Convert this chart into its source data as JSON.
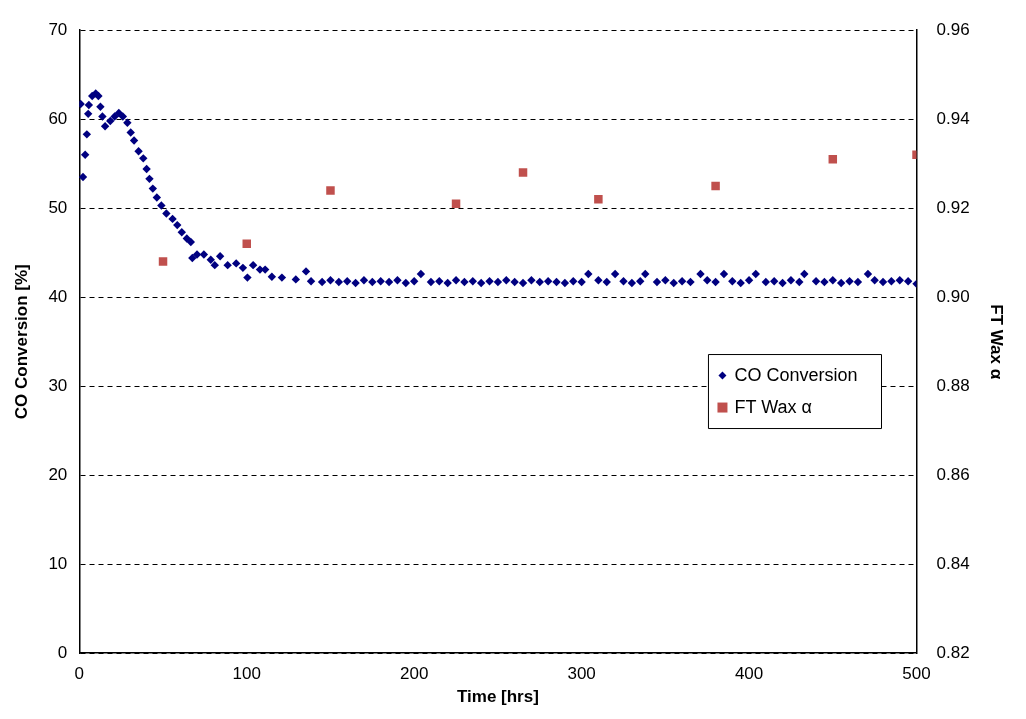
{
  "chart_data": {
    "type": "scatter",
    "xlabel": "Time [hrs]",
    "ylabel": "CO Conversion [%]",
    "y2label": "FT Wax α",
    "xlim": [
      0,
      500
    ],
    "xticks": [
      0,
      100,
      200,
      300,
      400,
      500
    ],
    "ylim": [
      0,
      70
    ],
    "yticks": [
      0,
      10,
      20,
      30,
      40,
      50,
      60,
      70
    ],
    "y2lim": [
      0.82,
      0.96
    ],
    "y2ticks": [
      {
        "value": 0.82,
        "label": "0.82"
      },
      {
        "value": 0.84,
        "label": "0.84"
      },
      {
        "value": 0.86,
        "label": "0.86"
      },
      {
        "value": 0.88,
        "label": "0.88"
      },
      {
        "value": 0.9,
        "label": "0.90"
      },
      {
        "value": 0.92,
        "label": "0.92"
      },
      {
        "value": 0.94,
        "label": "0.94"
      },
      {
        "value": 0.96,
        "label": "0.96"
      }
    ],
    "grid": "y",
    "legend": "right",
    "series": [
      {
        "name": "CO Conversion",
        "color": "#000080",
        "marker": "diamond",
        "x": [
          0.8,
          2.2,
          3.5,
          4.5,
          5.3,
          5.7,
          7.7,
          9.8,
          11.4,
          12.6,
          13.8,
          15.4,
          18.5,
          21.1,
          23.6,
          26,
          28.7,
          30.7,
          32.7,
          35.4,
          38.2,
          40.2,
          41.9,
          43.9,
          46.3,
          49,
          52,
          55.7,
          58.5,
          61.2,
          64.2,
          66.6,
          67.5,
          70.3,
          74.4,
          78.5,
          80.9,
          84.1,
          88.6,
          93.7,
          97.7,
          100.4,
          103.8,
          107.9,
          111,
          115,
          121,
          129.3,
          135.4,
          138.4,
          145,
          150,
          155,
          160,
          165,
          170,
          175,
          180,
          185,
          190,
          195,
          200,
          204,
          210,
          215,
          220,
          225,
          230,
          235,
          240,
          245,
          250,
          255,
          260,
          265,
          270,
          275,
          280,
          285,
          290,
          295,
          300,
          304,
          310,
          315,
          320,
          325,
          330,
          335,
          338,
          345,
          350,
          355,
          360,
          365,
          371,
          375,
          380,
          385,
          390,
          395,
          400,
          404,
          410,
          415,
          420,
          425,
          430,
          433,
          440,
          445,
          450,
          455,
          460,
          465,
          471,
          475,
          480,
          485,
          490,
          495,
          500
        ],
        "values": [
          61.7,
          53.5,
          56,
          58.3,
          60.6,
          61.6,
          62.6,
          62.9,
          62.6,
          61.4,
          60.3,
          59.2,
          59.8,
          60.3,
          60.7,
          60.3,
          59.6,
          58.5,
          57.6,
          56.4,
          55.6,
          54.4,
          53.3,
          52.2,
          51.2,
          50.3,
          49.4,
          48.8,
          48.1,
          47.3,
          46.6,
          46.2,
          44.4,
          44.8,
          44.8,
          44.2,
          43.6,
          44.6,
          43.6,
          43.8,
          43.3,
          42.2,
          43.6,
          43.1,
          43.1,
          42.3,
          42.2,
          42,
          42.9,
          41.8,
          41.7,
          41.9,
          41.7,
          41.8,
          41.6,
          41.9,
          41.7,
          41.8,
          41.7,
          41.9,
          41.6,
          41.8,
          42.6,
          41.7,
          41.8,
          41.6,
          41.9,
          41.7,
          41.8,
          41.6,
          41.8,
          41.7,
          41.9,
          41.7,
          41.6,
          41.9,
          41.7,
          41.8,
          41.7,
          41.6,
          41.8,
          41.7,
          42.6,
          41.9,
          41.7,
          42.6,
          41.8,
          41.6,
          41.8,
          42.6,
          41.7,
          41.9,
          41.6,
          41.8,
          41.7,
          42.6,
          41.9,
          41.7,
          42.6,
          41.8,
          41.6,
          41.9,
          42.6,
          41.7,
          41.8,
          41.6,
          41.9,
          41.7,
          42.6,
          41.8,
          41.7,
          41.9,
          41.6,
          41.8,
          41.7,
          42.6,
          41.9,
          41.7,
          41.8,
          41.9,
          41.8,
          41.5
        ]
      },
      {
        "name": "FT Wax α",
        "color": "#c0504d",
        "marker": "square",
        "axis": "y2",
        "x": [
          50,
          100,
          150,
          225,
          265,
          310,
          380,
          450,
          500
        ],
        "values": [
          0.908,
          0.912,
          0.924,
          0.921,
          0.928,
          0.922,
          0.925,
          0.931,
          0.932
        ]
      }
    ]
  }
}
